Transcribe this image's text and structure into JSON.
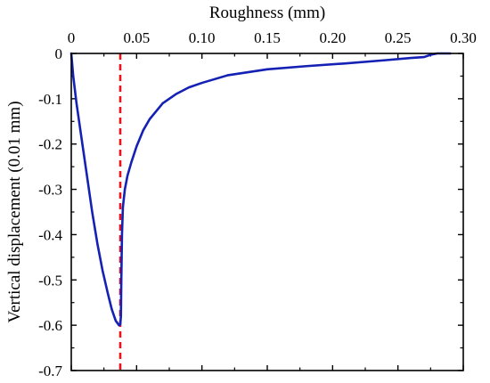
{
  "chart_data": {
    "type": "line",
    "xlabel": "Roughness (mm)",
    "ylabel": "Vertical displacement (0.01 mm)",
    "x_axis_position": "top",
    "xlim": [
      0,
      0.3
    ],
    "ylim": [
      -0.7,
      0
    ],
    "x_ticks": [
      0,
      0.05,
      0.1,
      0.15,
      0.2,
      0.25,
      0.3
    ],
    "x_tick_labels": [
      "0",
      "0.05",
      "0.10",
      "0.15",
      "0.20",
      "0.25",
      "0.30"
    ],
    "y_ticks": [
      0,
      -0.1,
      -0.2,
      -0.3,
      -0.4,
      -0.5,
      -0.6,
      -0.7
    ],
    "y_tick_labels": [
      "0",
      "-0.1",
      "-0.2",
      "-0.3",
      "-0.4",
      "-0.5",
      "-0.6",
      "-0.7"
    ],
    "grid": false,
    "reference_line": {
      "x": 0.0375,
      "color": "#e8141c",
      "style": "dashed"
    },
    "series": [
      {
        "color": "#1421b4",
        "points": [
          [
            0.0,
            0.0
          ],
          [
            0.0015,
            -0.05
          ],
          [
            0.004,
            -0.11
          ],
          [
            0.008,
            -0.19
          ],
          [
            0.012,
            -0.27
          ],
          [
            0.016,
            -0.35
          ],
          [
            0.02,
            -0.42
          ],
          [
            0.024,
            -0.48
          ],
          [
            0.028,
            -0.53
          ],
          [
            0.031,
            -0.565
          ],
          [
            0.034,
            -0.59
          ],
          [
            0.0365,
            -0.6
          ],
          [
            0.0375,
            -0.598
          ],
          [
            0.038,
            -0.58
          ],
          [
            0.0383,
            -0.5
          ],
          [
            0.0388,
            -0.4
          ],
          [
            0.0395,
            -0.34
          ],
          [
            0.041,
            -0.3
          ],
          [
            0.043,
            -0.27
          ],
          [
            0.046,
            -0.24
          ],
          [
            0.05,
            -0.205
          ],
          [
            0.055,
            -0.17
          ],
          [
            0.06,
            -0.145
          ],
          [
            0.07,
            -0.11
          ],
          [
            0.08,
            -0.09
          ],
          [
            0.09,
            -0.075
          ],
          [
            0.1,
            -0.065
          ],
          [
            0.12,
            -0.048
          ],
          [
            0.15,
            -0.035
          ],
          [
            0.18,
            -0.028
          ],
          [
            0.21,
            -0.022
          ],
          [
            0.24,
            -0.015
          ],
          [
            0.26,
            -0.01
          ],
          [
            0.27,
            -0.008
          ],
          [
            0.275,
            -0.003
          ],
          [
            0.28,
            0.0
          ],
          [
            0.29,
            0.0
          ]
        ]
      }
    ]
  }
}
